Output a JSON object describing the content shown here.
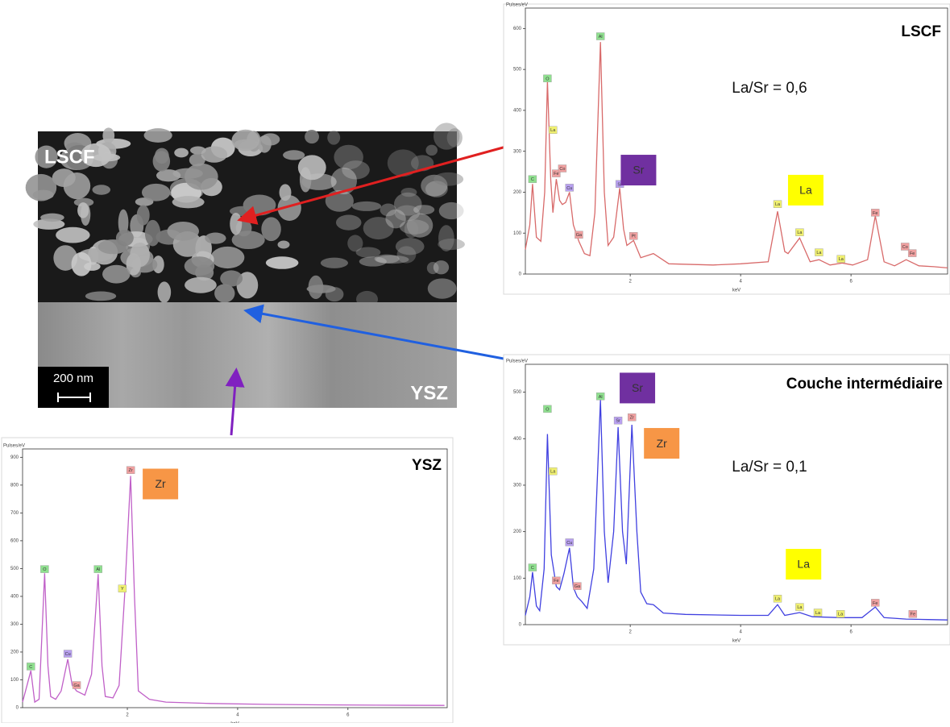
{
  "image": {
    "labels": [
      "LSCF",
      "YSZ"
    ],
    "scale_bar": "200 nm"
  },
  "tag_colors": {
    "C": "#8fe08f",
    "O": "#8fe08f",
    "Al": "#8fe08f",
    "La": "#f0f070",
    "Y": "#f0f070",
    "Fe": "#f0a0a0",
    "Co": "#f0a0a0",
    "Ga": "#f0a0a0",
    "Pt": "#f0a0a0",
    "Zr": "#f0a0a0",
    "Cu": "#b8a0f0",
    "Sr": "#b8a0f0"
  },
  "chart_data": [
    {
      "type": "line",
      "title": "LSCF",
      "note": "La/Sr = 0,6",
      "y_label": "Pulses/eV",
      "x_label": "keV",
      "color": "#d86a6a",
      "xlim": [
        0.1,
        7.75
      ],
      "ylim": [
        0,
        650
      ],
      "xticks": [
        2,
        4,
        6
      ],
      "yticks": [
        0,
        100,
        200,
        300,
        400,
        500,
        600
      ],
      "x": [
        0.1,
        0.18,
        0.23,
        0.3,
        0.38,
        0.45,
        0.5,
        0.56,
        0.6,
        0.66,
        0.72,
        0.77,
        0.83,
        0.9,
        0.97,
        1.07,
        1.17,
        1.27,
        1.36,
        1.46,
        1.53,
        1.6,
        1.7,
        1.81,
        1.88,
        1.94,
        2.06,
        2.19,
        2.42,
        2.7,
        3.5,
        4.0,
        4.5,
        4.67,
        4.8,
        4.86,
        5.07,
        5.26,
        5.42,
        5.62,
        5.84,
        6.03,
        6.3,
        6.44,
        6.6,
        6.79,
        7.0,
        7.23,
        7.5,
        7.75
      ],
      "values": [
        60,
        120,
        220,
        90,
        80,
        200,
        472,
        230,
        150,
        232,
        180,
        170,
        175,
        200,
        120,
        80,
        50,
        45,
        150,
        567,
        200,
        70,
        90,
        210,
        110,
        70,
        82,
        40,
        50,
        25,
        22,
        25,
        30,
        153,
        55,
        50,
        88,
        30,
        35,
        22,
        27,
        22,
        35,
        142,
        30,
        20,
        35,
        20,
        18,
        15
      ],
      "tags": [
        {
          "text": "C",
          "x": 0.23,
          "y": 232
        },
        {
          "text": "O",
          "x": 0.5,
          "y": 478
        },
        {
          "text": "La",
          "x": 0.6,
          "y": 352
        },
        {
          "text": "Fe",
          "x": 0.66,
          "y": 246
        },
        {
          "text": "Co",
          "x": 0.77,
          "y": 258
        },
        {
          "text": "Cu",
          "x": 0.9,
          "y": 211
        },
        {
          "text": "Ga",
          "x": 1.07,
          "y": 96
        },
        {
          "text": "Al",
          "x": 1.46,
          "y": 581
        },
        {
          "text": "Sr",
          "x": 1.81,
          "y": 220
        },
        {
          "text": "Pt",
          "x": 2.06,
          "y": 93
        },
        {
          "text": "La",
          "x": 4.67,
          "y": 171
        },
        {
          "text": "La",
          "x": 5.07,
          "y": 102
        },
        {
          "text": "La",
          "x": 5.42,
          "y": 53
        },
        {
          "text": "La",
          "x": 5.82,
          "y": 37
        },
        {
          "text": "Fe",
          "x": 6.44,
          "y": 150
        },
        {
          "text": "Co",
          "x": 6.98,
          "y": 67
        },
        {
          "text": "Fe",
          "x": 7.11,
          "y": 51
        }
      ],
      "boxes": [
        {
          "text": "Sr",
          "x": 2.15,
          "y": 254,
          "color": "#7030a0"
        },
        {
          "text": "La",
          "x": 5.18,
          "y": 205,
          "color": "#ffff00"
        }
      ]
    },
    {
      "type": "line",
      "title": "Couche intermédiaire",
      "note": "La/Sr = 0,1",
      "y_label": "Pulses/eV",
      "x_label": "keV",
      "color": "#4040e0",
      "xlim": [
        0.1,
        7.75
      ],
      "ylim": [
        0,
        560
      ],
      "xticks": [
        2,
        4,
        6
      ],
      "yticks": [
        0,
        100,
        200,
        300,
        400,
        500
      ],
      "x": [
        0.1,
        0.18,
        0.23,
        0.3,
        0.36,
        0.44,
        0.5,
        0.57,
        0.66,
        0.72,
        0.8,
        0.9,
        0.97,
        1.04,
        1.12,
        1.22,
        1.34,
        1.46,
        1.53,
        1.6,
        1.7,
        1.78,
        1.86,
        1.93,
        2.03,
        2.12,
        2.19,
        2.3,
        2.42,
        2.6,
        3.0,
        4.0,
        4.5,
        4.67,
        4.8,
        5.07,
        5.3,
        5.8,
        6.2,
        6.44,
        6.6,
        7.0,
        7.4,
        7.75
      ],
      "values": [
        20,
        60,
        113,
        40,
        30,
        120,
        410,
        150,
        82,
        75,
        110,
        165,
        80,
        60,
        50,
        35,
        120,
        483,
        200,
        90,
        200,
        425,
        200,
        130,
        430,
        200,
        70,
        45,
        43,
        25,
        22,
        20,
        20,
        43,
        20,
        26,
        17,
        15,
        15,
        38,
        15,
        12,
        11,
        10
      ],
      "tags": [
        {
          "text": "C",
          "x": 0.23,
          "y": 123
        },
        {
          "text": "O",
          "x": 0.5,
          "y": 464
        },
        {
          "text": "La",
          "x": 0.6,
          "y": 330
        },
        {
          "text": "Fe",
          "x": 0.66,
          "y": 95
        },
        {
          "text": "Cu",
          "x": 0.9,
          "y": 177
        },
        {
          "text": "Ga",
          "x": 1.04,
          "y": 83
        },
        {
          "text": "Al",
          "x": 1.46,
          "y": 491
        },
        {
          "text": "Sr",
          "x": 1.78,
          "y": 439
        },
        {
          "text": "Zr",
          "x": 2.03,
          "y": 446
        },
        {
          "text": "La",
          "x": 4.67,
          "y": 56
        },
        {
          "text": "La",
          "x": 5.07,
          "y": 38
        },
        {
          "text": "La",
          "x": 5.4,
          "y": 26
        },
        {
          "text": "La",
          "x": 5.81,
          "y": 23
        },
        {
          "text": "Fe",
          "x": 6.44,
          "y": 47
        },
        {
          "text": "Fe",
          "x": 7.12,
          "y": 23
        }
      ],
      "boxes": [
        {
          "text": "Sr",
          "x": 2.13,
          "y": 509,
          "color": "#7030a0"
        },
        {
          "text": "Zr",
          "x": 2.57,
          "y": 390,
          "color": "#f79646"
        },
        {
          "text": "La",
          "x": 5.14,
          "y": 130,
          "color": "#ffff00"
        }
      ]
    },
    {
      "type": "line",
      "title": "YSZ",
      "y_label": "Pulses/eV",
      "x_label": "keV",
      "color": "#c060c8",
      "xlim": [
        0.1,
        7.8
      ],
      "ylim": [
        0,
        930
      ],
      "xticks": [
        2,
        4,
        6
      ],
      "yticks": [
        0,
        100,
        200,
        300,
        400,
        500,
        600,
        700,
        800,
        900
      ],
      "x": [
        0.1,
        0.18,
        0.25,
        0.32,
        0.4,
        0.5,
        0.56,
        0.61,
        0.7,
        0.8,
        0.92,
        1.0,
        1.08,
        1.23,
        1.35,
        1.47,
        1.54,
        1.6,
        1.74,
        1.85,
        1.95,
        2.06,
        2.13,
        2.2,
        2.4,
        2.7,
        3.5,
        4.5,
        5.5,
        6.5,
        7.75
      ],
      "values": [
        20,
        80,
        133,
        20,
        30,
        483,
        150,
        40,
        30,
        60,
        174,
        80,
        60,
        45,
        120,
        480,
        150,
        40,
        35,
        80,
        400,
        833,
        400,
        60,
        30,
        20,
        15,
        12,
        10,
        9,
        8
      ],
      "tags": [
        {
          "text": "C",
          "x": 0.25,
          "y": 148
        },
        {
          "text": "O",
          "x": 0.5,
          "y": 498
        },
        {
          "text": "Cu",
          "x": 0.92,
          "y": 194
        },
        {
          "text": "Ga",
          "x": 1.08,
          "y": 81
        },
        {
          "text": "Al",
          "x": 1.47,
          "y": 498
        },
        {
          "text": "Y",
          "x": 1.91,
          "y": 428
        },
        {
          "text": "Zr",
          "x": 2.06,
          "y": 854
        }
      ],
      "boxes": [
        {
          "text": "Zr",
          "x": 2.6,
          "y": 804,
          "color": "#f79646"
        }
      ]
    }
  ]
}
